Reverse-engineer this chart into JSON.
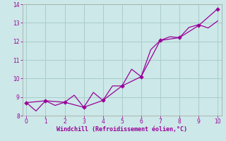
{
  "xlabel": "Windchill (Refroidissement éolien,°C)",
  "background_color": "#cce8e8",
  "grid_color": "#aacccc",
  "line_color": "#990099",
  "spine_color": "#aaaaaa",
  "xlim": [
    -0.2,
    10.2
  ],
  "ylim": [
    8,
    14
  ],
  "yticks": [
    8,
    9,
    10,
    11,
    12,
    13,
    14
  ],
  "xticks": [
    0,
    1,
    2,
    3,
    4,
    5,
    6,
    7,
    8,
    9,
    10
  ],
  "line1_x": [
    0,
    0.5,
    1,
    1.5,
    2,
    2.5,
    3,
    3.5,
    4,
    4.5,
    5,
    5.5,
    6,
    6.5,
    7,
    7.5,
    8,
    8.5,
    9,
    9.5,
    10
  ],
  "line1_y": [
    8.7,
    8.25,
    8.8,
    8.55,
    8.72,
    9.1,
    8.45,
    9.25,
    8.82,
    9.6,
    9.6,
    10.5,
    10.1,
    11.55,
    12.05,
    12.25,
    12.2,
    12.75,
    12.9,
    12.72,
    13.1
  ],
  "line2_x": [
    0,
    1,
    2,
    3,
    4,
    5,
    6,
    7,
    8,
    9,
    10
  ],
  "line2_y": [
    8.7,
    8.8,
    8.72,
    8.45,
    8.82,
    9.6,
    10.1,
    12.05,
    12.2,
    12.85,
    13.75
  ]
}
